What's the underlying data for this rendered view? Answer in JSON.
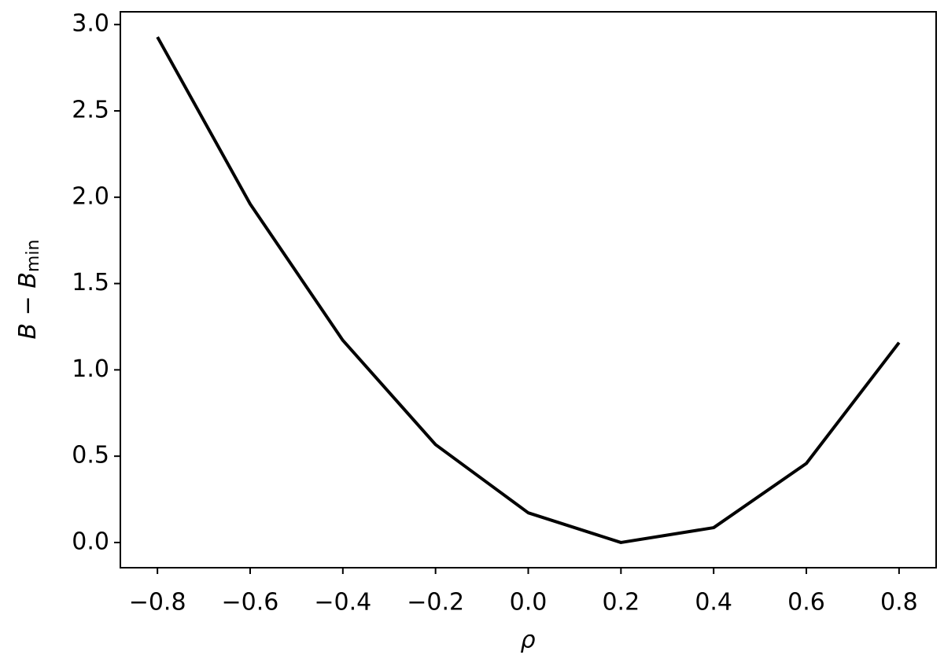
{
  "chart_data": {
    "type": "line",
    "x_label": "ρ",
    "y_label_parts": [
      "B − B",
      "min"
    ],
    "x": [
      -0.8,
      -0.6,
      -0.4,
      -0.2,
      0.0,
      0.2,
      0.4,
      0.6,
      0.8
    ],
    "series": [
      {
        "color": "#000000",
        "values": [
          2.928,
          1.961,
          1.171,
          0.567,
          0.172,
          0.0,
          0.086,
          0.458,
          1.158
        ]
      }
    ],
    "xlim": [
      -0.88,
      0.88
    ],
    "ylim": [
      -0.146,
      3.074
    ],
    "xticks": [
      {
        "value": -0.8,
        "label": "−0.8"
      },
      {
        "value": -0.6,
        "label": "−0.6"
      },
      {
        "value": -0.4,
        "label": "−0.4"
      },
      {
        "value": -0.2,
        "label": "−0.2"
      },
      {
        "value": 0,
        "label": "0.0"
      },
      0.2,
      0.4,
      0.6,
      0.8
    ],
    "yticks": [
      {
        "value": 0,
        "label": "0.0"
      },
      0.5,
      {
        "value": 1,
        "label": "1.0"
      },
      1.5,
      {
        "value": 2,
        "label": "2.0"
      },
      2.5,
      {
        "value": 3,
        "label": "3.0"
      }
    ],
    "grid": false
  }
}
